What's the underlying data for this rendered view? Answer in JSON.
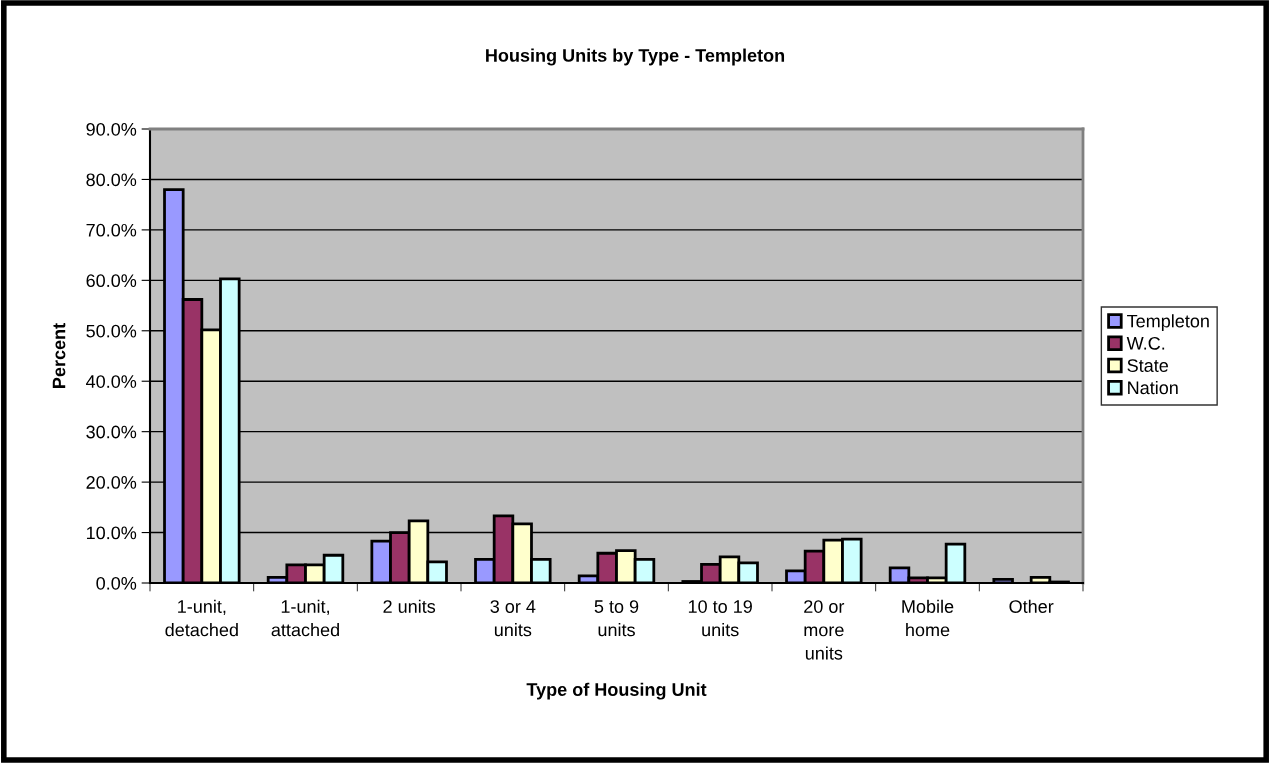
{
  "chart_data": {
    "type": "bar",
    "title": "Housing Units by Type - Templeton",
    "xlabel": "Type of Housing Unit",
    "ylabel": "Percent",
    "categories": [
      "1-unit,\ndetached",
      "1-unit,\nattached",
      "2 units",
      "3 or 4\nunits",
      "5 to 9\nunits",
      "10 to 19\nunits",
      "20 or\nmore\nunits",
      "Mobile\nhome",
      "Other"
    ],
    "series": [
      {
        "name": "Templeton",
        "color": "#9999ff",
        "values": [
          78.0,
          1.1,
          8.3,
          4.7,
          1.4,
          0.3,
          2.4,
          3.0,
          0.7
        ]
      },
      {
        "name": "W.C.",
        "color": "#993366",
        "values": [
          56.2,
          3.6,
          10.0,
          13.3,
          5.9,
          3.7,
          6.3,
          1.0,
          null
        ]
      },
      {
        "name": "State",
        "color": "#ffffcc",
        "values": [
          50.2,
          3.6,
          12.3,
          11.7,
          6.4,
          5.2,
          8.5,
          1.0,
          1.1
        ]
      },
      {
        "name": "Nation",
        "color": "#ccffff",
        "values": [
          60.3,
          5.5,
          4.2,
          4.7,
          4.7,
          4.0,
          8.7,
          7.7,
          0.2
        ]
      }
    ],
    "ylim": [
      0,
      90
    ],
    "yticks": [
      {
        "value": 0,
        "label": "0.0%"
      },
      {
        "value": 10,
        "label": "10.0%"
      },
      {
        "value": 20,
        "label": "20.0%"
      },
      {
        "value": 30,
        "label": "30.0%"
      },
      {
        "value": 40,
        "label": "40.0%"
      },
      {
        "value": 50,
        "label": "50.0%"
      },
      {
        "value": 60,
        "label": "60.0%"
      },
      {
        "value": 70,
        "label": "70.0%"
      },
      {
        "value": 80,
        "label": "80.0%"
      },
      {
        "value": 90,
        "label": "90.0%"
      }
    ],
    "grid": "y",
    "legend": "right"
  }
}
